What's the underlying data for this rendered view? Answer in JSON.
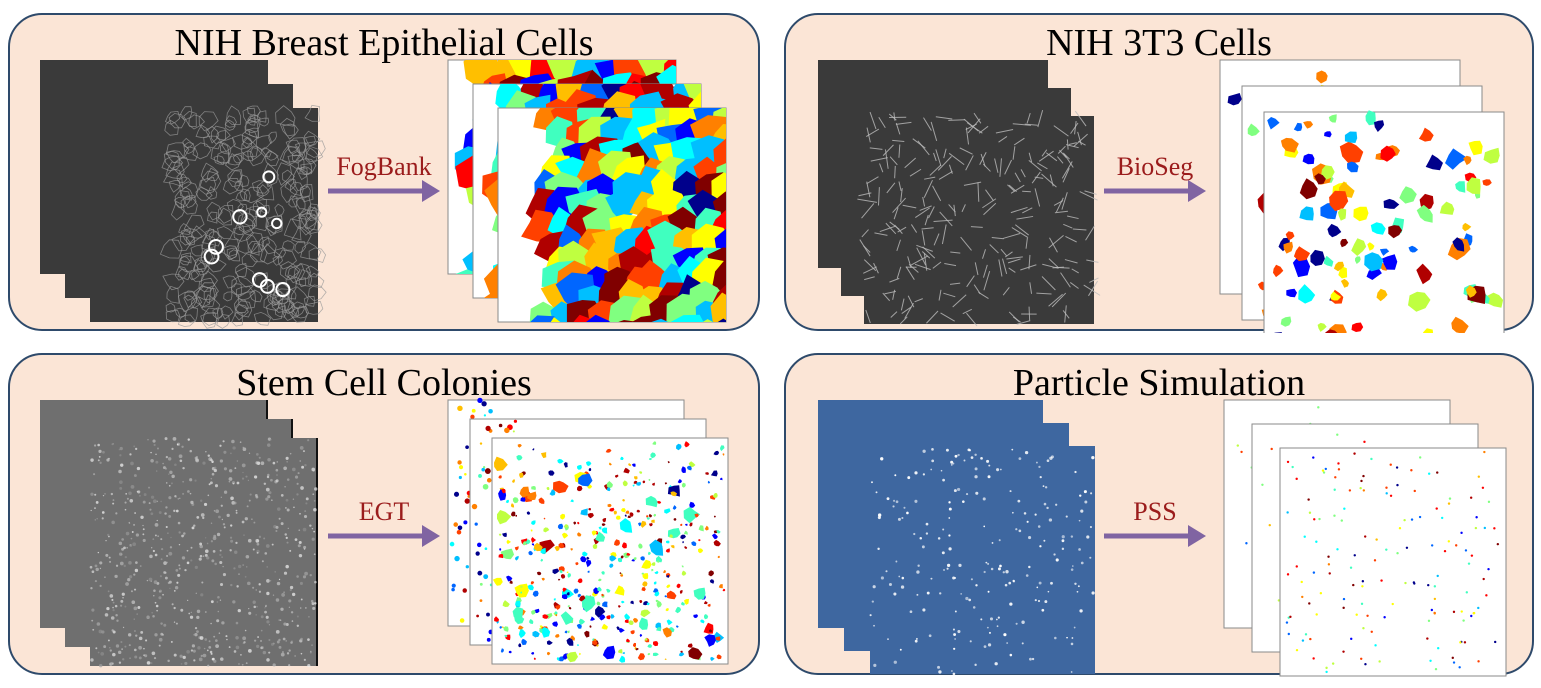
{
  "panels": [
    {
      "id": "breast-epithelial",
      "title": "NIH Breast Epithelial Cells",
      "method": "FogBank",
      "input_style": "phase-contrast-dark",
      "output_style": "dense-segmentation"
    },
    {
      "id": "nih-3t3",
      "title": "NIH 3T3 Cells",
      "method": "BioSeg",
      "input_style": "phase-contrast-sparse",
      "output_style": "sparse-segmentation"
    },
    {
      "id": "stem-cell",
      "title": "Stem Cell Colonies",
      "method": "EGT",
      "input_style": "grey-speckle",
      "output_style": "speckle-segmentation"
    },
    {
      "id": "particle",
      "title": "Particle Simulation",
      "method": "PSS",
      "input_style": "blue-particles",
      "output_style": "point-segmentation"
    }
  ],
  "colors": {
    "panel_fill": "#fbe5d6",
    "panel_border": "#2e4a6b",
    "arrow": "#8064a2",
    "method_label": "#9b1c1c",
    "jet_palette": [
      "#00008b",
      "#0000ff",
      "#0066ff",
      "#00bfff",
      "#00ffff",
      "#40ffbf",
      "#80ff80",
      "#bfff40",
      "#ffff00",
      "#ffbf00",
      "#ff8000",
      "#ff4000",
      "#ff0000",
      "#b00000",
      "#800000"
    ]
  }
}
